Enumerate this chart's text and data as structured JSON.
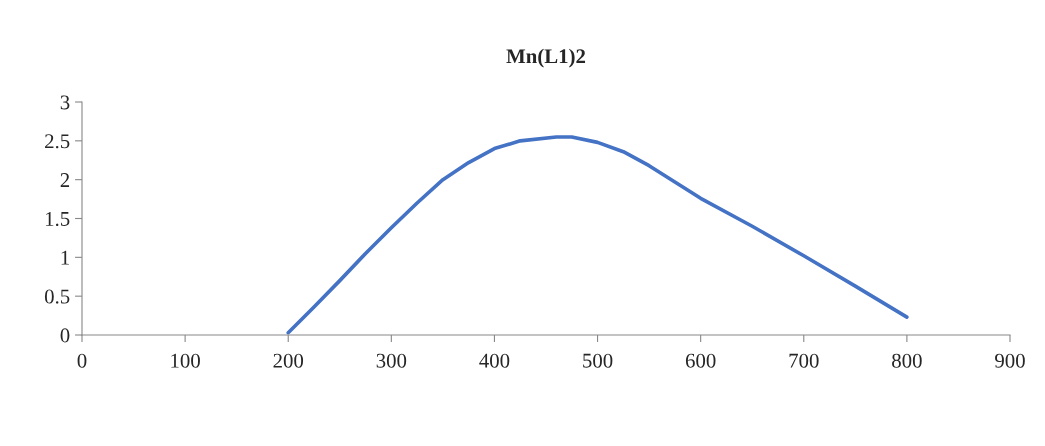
{
  "chart_data": {
    "type": "line",
    "title": "Mn(L1)2",
    "x": [
      200,
      225,
      250,
      275,
      300,
      325,
      350,
      375,
      400,
      425,
      460,
      475,
      500,
      525,
      550,
      575,
      600,
      650,
      700,
      750,
      800
    ],
    "series": [
      {
        "color": "#4472c4",
        "values": [
          0.03,
          0.36,
          0.7,
          1.05,
          1.38,
          1.7,
          2.0,
          2.22,
          2.4,
          2.5,
          2.55,
          2.55,
          2.48,
          2.36,
          2.18,
          1.97,
          1.76,
          1.4,
          1.02,
          0.63,
          0.23
        ]
      }
    ],
    "xlim": [
      0,
      900
    ],
    "xticks": [
      0,
      100,
      200,
      300,
      400,
      500,
      600,
      700,
      800,
      900
    ],
    "ylim": [
      0,
      3
    ],
    "yticks": [
      0,
      0.5,
      1,
      1.5,
      2,
      2.5,
      3
    ],
    "grid": false,
    "legend": false,
    "line_style": "solid",
    "marker": "none"
  }
}
